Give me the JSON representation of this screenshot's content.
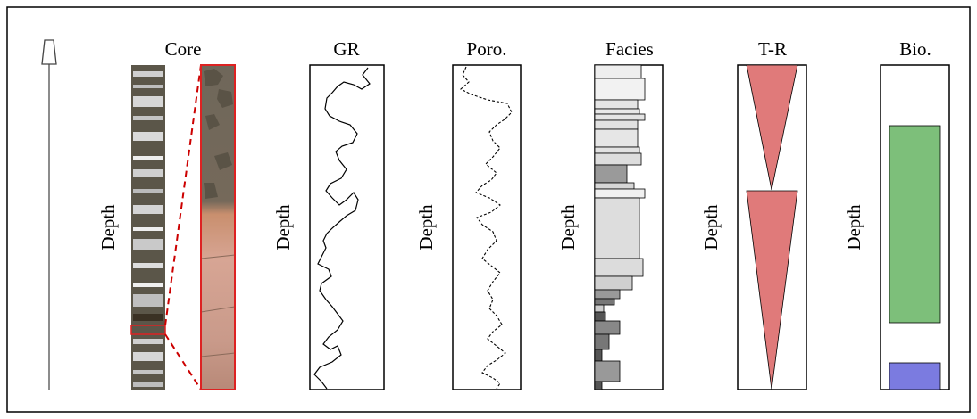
{
  "columns": [
    {
      "title": "Core",
      "axis_label": "Depth"
    },
    {
      "title": "GR",
      "axis_label": "Depth"
    },
    {
      "title": "Poro.",
      "axis_label": "Depth"
    },
    {
      "title": "Facies",
      "axis_label": "Depth"
    },
    {
      "title": "T-R",
      "axis_label": "Depth"
    },
    {
      "title": "Bio.",
      "axis_label": "Depth"
    }
  ]
}
